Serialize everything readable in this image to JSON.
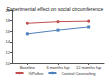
{
  "chart_data": {
    "type": "line",
    "title": "Experimental effect on social circumference",
    "categories": [
      "Baseline",
      "6 months fup",
      "12 months fup"
    ],
    "series": [
      {
        "name": "IVPollee",
        "color": "#c0504d",
        "marker": "circle",
        "values": [
          17.5,
          17.8,
          17.9
        ]
      },
      {
        "name": "Control Counseling",
        "color": "#4f81bd",
        "marker": "square",
        "values": [
          15.5,
          16.2,
          16.8
        ]
      }
    ],
    "ylim": [
      10,
      20
    ],
    "yticks": [
      10,
      12,
      14,
      16,
      18,
      20
    ],
    "grid": false,
    "legend": "bottom"
  }
}
